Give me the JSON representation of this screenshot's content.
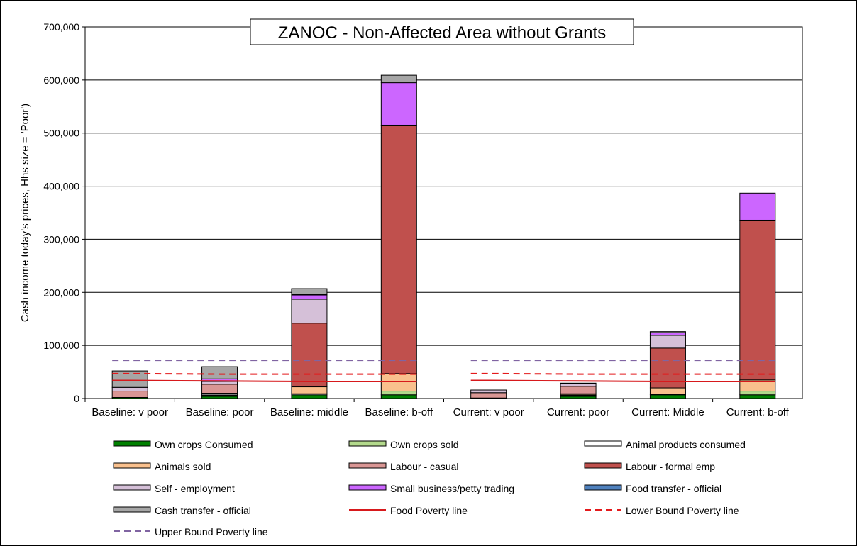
{
  "chart_data": {
    "type": "bar",
    "stacked": true,
    "title": "ZANOC - Non-Affected Area without Grants",
    "ylabel": "Cash income today's prices, Hhs size = 'Poor')",
    "xlabel": "",
    "ylim": [
      0,
      700000
    ],
    "yticks": [
      0,
      100000,
      200000,
      300000,
      400000,
      500000,
      600000,
      700000
    ],
    "ytick_labels": [
      "0",
      "100,000",
      "200,000",
      "300,000",
      "400,000",
      "500,000",
      "600,000",
      "700,000"
    ],
    "grid": true,
    "legend_position": "bottom",
    "categories": [
      "Baseline: v poor",
      "Baseline: poor",
      "Baseline: middle",
      "Baseline: b-off",
      "Current: v poor",
      "Current: poor",
      "Current: Middle",
      "Current: b-off"
    ],
    "series": [
      {
        "name": "Own crops Consumed",
        "color": "#008000",
        "values": [
          2000,
          4000,
          7000,
          7000,
          1000,
          4000,
          7000,
          7000
        ]
      },
      {
        "name": "Own crops sold",
        "color": "#b3d98c",
        "values": [
          0,
          2000,
          0,
          7000,
          0,
          2000,
          0,
          7000
        ]
      },
      {
        "name": "Animal products consumed",
        "color": "#ffffff",
        "values": [
          0,
          2000,
          2000,
          0,
          0,
          1000,
          1000,
          0
        ]
      },
      {
        "name": "Animals sold",
        "color": "#f9c08d",
        "values": [
          0,
          2000,
          13000,
          33000,
          0,
          2000,
          12000,
          21000
        ]
      },
      {
        "name": "Labour - casual",
        "color": "#d99694",
        "values": [
          12000,
          17000,
          0,
          0,
          10000,
          14000,
          0,
          0
        ]
      },
      {
        "name": "Labour - formal emp",
        "color": "#c0504d",
        "values": [
          0,
          0,
          120000,
          468000,
          0,
          0,
          75000,
          301000
        ]
      },
      {
        "name": "Self - employment",
        "color": "#d5c0d8",
        "values": [
          7000,
          5000,
          45000,
          0,
          5000,
          5000,
          24000,
          0
        ]
      },
      {
        "name": "Small business/petty trading",
        "color": "#cc66ff",
        "values": [
          0,
          5000,
          8000,
          80000,
          0,
          0,
          5000,
          51000
        ]
      },
      {
        "name": "Food transfer - official",
        "color": "#4f81bd",
        "values": [
          0,
          0,
          1000,
          0,
          0,
          0,
          0,
          0
        ]
      },
      {
        "name": "Cash transfer - official",
        "color": "#a6a6a6",
        "values": [
          31000,
          23000,
          11000,
          14000,
          0,
          1000,
          2000,
          0
        ]
      }
    ],
    "lines": [
      {
        "name": "Food Poverty line",
        "color": "#d7191c",
        "style": "solid",
        "values": [
          34000,
          33000,
          32000,
          32000,
          34000,
          33000,
          32000,
          32000
        ]
      },
      {
        "name": "Lower Bound Poverty line",
        "color": "#e41a1c",
        "style": "dashed",
        "values": [
          47000,
          46000,
          46000,
          46000,
          47000,
          46000,
          46000,
          46000
        ]
      },
      {
        "name": "Upper Bound Poverty line",
        "color": "#8064a2",
        "style": "dashed",
        "values": [
          72000,
          72000,
          72000,
          72000,
          72000,
          72000,
          72000,
          72000
        ]
      }
    ],
    "legend": [
      "Own crops Consumed",
      "Own crops sold",
      "Animal products consumed",
      "Animals sold",
      "Labour - casual",
      "Labour - formal emp",
      "Self - employment",
      "Small business/petty trading",
      "Food transfer - official",
      "Cash transfer - official",
      "Food Poverty line",
      "Lower Bound Poverty line",
      "Upper Bound Poverty line"
    ]
  }
}
